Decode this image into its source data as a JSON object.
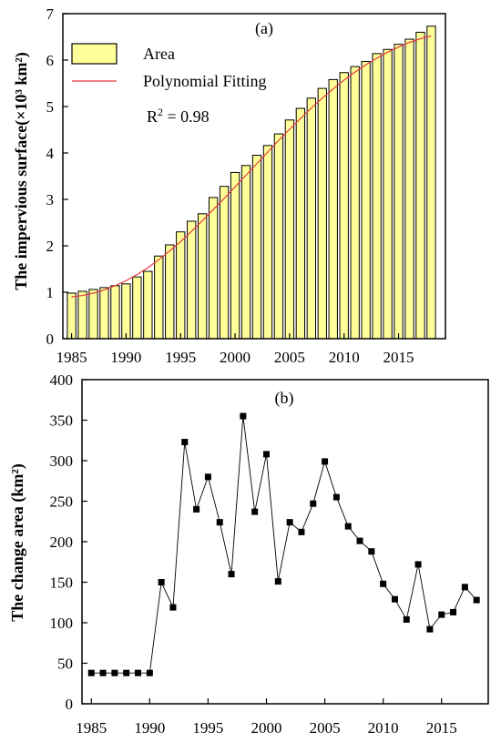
{
  "chart_data": [
    {
      "type": "bar",
      "panel_label": "(a)",
      "ylabel": "The impervious surface(×10³ km²)",
      "xlabel": "",
      "x_ticks": [
        1985,
        1990,
        1995,
        2000,
        2005,
        2010,
        2015
      ],
      "y_ticks": [
        0,
        1,
        2,
        3,
        4,
        5,
        6,
        7
      ],
      "xlim": [
        1984.2,
        2019.3
      ],
      "ylim": [
        0,
        7
      ],
      "legend": {
        "position": "top-left",
        "entries": [
          {
            "label": "Area",
            "kind": "bar"
          },
          {
            "label": "Polynomial Fitting",
            "kind": "line"
          }
        ]
      },
      "annotation": {
        "r2_prefix": "R",
        "r2_sup": "2",
        "r2_value": " = 0.98"
      },
      "categories": [
        1985,
        1986,
        1987,
        1988,
        1989,
        1990,
        1991,
        1992,
        1993,
        1994,
        1995,
        1996,
        1997,
        1998,
        1999,
        2000,
        2001,
        2002,
        2003,
        2004,
        2005,
        2006,
        2007,
        2008,
        2009,
        2010,
        2011,
        2012,
        2013,
        2014,
        2015,
        2016,
        2017,
        2018
      ],
      "series": [
        {
          "name": "Area",
          "color": "#ffff99",
          "edge": "#000000",
          "values": [
            0.98,
            1.02,
            1.06,
            1.1,
            1.14,
            1.18,
            1.33,
            1.45,
            1.78,
            2.02,
            2.3,
            2.53,
            2.69,
            3.04,
            3.28,
            3.58,
            3.73,
            3.95,
            4.16,
            4.41,
            4.71,
            4.96,
            5.18,
            5.39,
            5.58,
            5.73,
            5.86,
            5.97,
            6.14,
            6.23,
            6.34,
            6.45,
            6.6,
            6.73
          ]
        },
        {
          "name": "Polynomial Fitting",
          "color": "#e8383d",
          "values": [
            0.9,
            0.93,
            0.98,
            1.05,
            1.14,
            1.25,
            1.38,
            1.53,
            1.7,
            1.89,
            2.09,
            2.31,
            2.54,
            2.78,
            3.02,
            3.27,
            3.52,
            3.77,
            4.02,
            4.27,
            4.51,
            4.74,
            4.97,
            5.18,
            5.38,
            5.57,
            5.74,
            5.9,
            6.04,
            6.17,
            6.28,
            6.38,
            6.46,
            6.52
          ]
        }
      ]
    },
    {
      "type": "line",
      "panel_label": "(b)",
      "ylabel": "The change area (km²)",
      "xlabel": "",
      "x_ticks": [
        1985,
        1990,
        1995,
        2000,
        2005,
        2010,
        2015
      ],
      "y_ticks": [
        0,
        50,
        100,
        150,
        200,
        250,
        300,
        350,
        400
      ],
      "xlim": [
        1984.2,
        2019.0
      ],
      "ylim": [
        0,
        400
      ],
      "x": [
        1985,
        1986,
        1987,
        1988,
        1989,
        1990,
        1991,
        1992,
        1993,
        1994,
        1995,
        1996,
        1997,
        1998,
        1999,
        2000,
        2001,
        2002,
        2003,
        2004,
        2005,
        2006,
        2007,
        2008,
        2009,
        2010,
        2011,
        2012,
        2013,
        2014,
        2015,
        2016,
        2017,
        2018
      ],
      "series": [
        {
          "name": "",
          "color": "#000000",
          "marker": "square",
          "values": [
            38,
            38,
            38,
            38,
            38,
            38,
            150,
            119,
            323,
            240,
            280,
            224,
            160,
            355,
            237,
            308,
            151,
            224,
            212,
            247,
            299,
            255,
            219,
            201,
            188,
            148,
            129,
            104,
            172,
            92,
            110,
            113,
            144,
            128
          ]
        }
      ]
    }
  ]
}
